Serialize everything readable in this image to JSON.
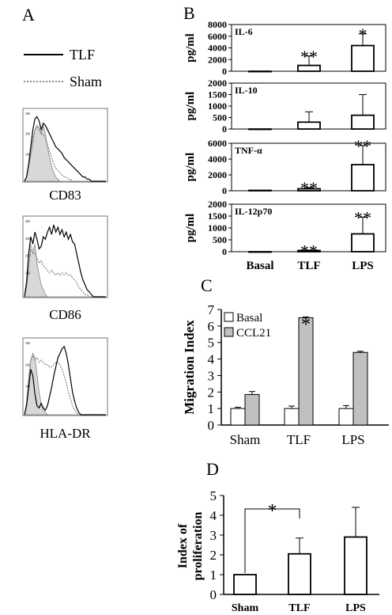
{
  "panel_labels": {
    "a": "A",
    "b": "B",
    "c": "C",
    "d": "D"
  },
  "panel_a": {
    "legend": [
      {
        "label": "TLF",
        "style": "solid",
        "color": "#000000"
      },
      {
        "label": "Sham",
        "style": "dotted",
        "color": "#888888"
      }
    ],
    "histograms": [
      {
        "marker": "CD83",
        "tick_labels": [
          "300",
          "200",
          "100"
        ],
        "isotype": [
          0,
          2,
          7,
          12,
          18,
          24,
          26,
          25,
          22,
          26,
          22,
          16,
          11,
          7,
          4,
          2,
          1,
          0,
          0,
          0,
          0,
          0,
          0,
          0,
          0,
          0,
          0,
          0,
          0,
          0,
          0,
          0,
          0,
          0,
          0,
          0,
          0,
          0,
          0,
          0
        ],
        "tlf": [
          0,
          2,
          8,
          16,
          24,
          29,
          30,
          28,
          24,
          27,
          26,
          24,
          22,
          20,
          18,
          16,
          15,
          14,
          13,
          11,
          10,
          9,
          8,
          7,
          6,
          5,
          4,
          3,
          2,
          2,
          1,
          1,
          0,
          0,
          0,
          0,
          0,
          0,
          0,
          0
        ],
        "sham": [
          0,
          2,
          7,
          14,
          20,
          24,
          25,
          24,
          22,
          22,
          20,
          17,
          14,
          11,
          8,
          6,
          5,
          4,
          3,
          2,
          2,
          1,
          1,
          0,
          0,
          0,
          0,
          0,
          0,
          0,
          0,
          0,
          0,
          0,
          0,
          0,
          0,
          0,
          0,
          0
        ]
      },
      {
        "marker": "CD86",
        "tick_labels": [
          "400",
          "300",
          "200",
          "100"
        ],
        "isotype": [
          0,
          4,
          12,
          20,
          18,
          22,
          14,
          9,
          5,
          3,
          1,
          0,
          0,
          0,
          0,
          0,
          0,
          0,
          0,
          0,
          0,
          0,
          0,
          0,
          0,
          0,
          0,
          0,
          0,
          0,
          0,
          0,
          0,
          0,
          0,
          0,
          0,
          0,
          0,
          0
        ],
        "tlf": [
          0,
          6,
          18,
          25,
          22,
          27,
          24,
          20,
          21,
          25,
          24,
          27,
          29,
          26,
          30,
          27,
          29,
          26,
          28,
          25,
          27,
          24,
          26,
          23,
          22,
          18,
          14,
          10,
          7,
          5,
          3,
          2,
          1,
          0,
          0,
          0,
          0,
          0,
          0,
          0
        ],
        "sham": [
          0,
          6,
          17,
          22,
          19,
          18,
          16,
          14,
          15,
          13,
          12,
          11,
          10,
          11,
          10,
          9,
          10,
          9,
          10,
          9,
          10,
          9,
          9,
          8,
          7,
          6,
          4,
          3,
          2,
          1,
          1,
          0,
          0,
          0,
          0,
          0,
          0,
          0,
          0,
          0
        ]
      },
      {
        "marker": "HLA-DR",
        "tick_labels": [
          "300",
          "200",
          "100"
        ],
        "isotype": [
          0,
          5,
          15,
          24,
          27,
          25,
          18,
          10,
          5,
          2,
          1,
          0,
          0,
          0,
          0,
          0,
          0,
          0,
          0,
          0,
          0,
          0,
          0,
          0,
          0,
          0,
          0,
          0,
          0,
          0,
          0,
          0,
          0,
          0,
          0,
          0,
          0,
          0,
          0,
          0
        ],
        "tlf": [
          0,
          4,
          12,
          20,
          17,
          9,
          4,
          3,
          5,
          3,
          2,
          4,
          8,
          12,
          17,
          21,
          25,
          27,
          29,
          30,
          27,
          22,
          16,
          10,
          6,
          3,
          1,
          0,
          0,
          0,
          0,
          0,
          0,
          0,
          0,
          0,
          0,
          0,
          0,
          0
        ],
        "sham": [
          0,
          5,
          16,
          24,
          26,
          24,
          25,
          23,
          24,
          23,
          22,
          22,
          21,
          21,
          22,
          23,
          23,
          22,
          20,
          17,
          14,
          10,
          7,
          4,
          2,
          1,
          0,
          0,
          0,
          0,
          0,
          0,
          0,
          0,
          0,
          0,
          0,
          0,
          0,
          0
        ]
      }
    ]
  },
  "chart_data": [
    {
      "type": "bar",
      "panel": "B",
      "label": "IL-6",
      "ylabel": "pg/ml",
      "categories": [
        "Basal",
        "TLF",
        "LPS"
      ],
      "values": [
        0,
        1000,
        4400
      ],
      "errors": [
        0,
        1600,
        2000
      ],
      "annotations": [
        "",
        "**",
        "*"
      ],
      "ylim": [
        0,
        8000
      ],
      "yticks": [
        0,
        2000,
        4000,
        6000,
        8000
      ]
    },
    {
      "type": "bar",
      "panel": "B",
      "label": "IL-10",
      "ylabel": "pg/ml",
      "categories": [
        "Basal",
        "TLF",
        "LPS"
      ],
      "values": [
        0,
        300,
        600
      ],
      "errors": [
        0,
        450,
        900
      ],
      "annotations": [
        "",
        "",
        ""
      ],
      "ylim": [
        0,
        2000
      ],
      "yticks": [
        0,
        500,
        1000,
        1500,
        2000
      ]
    },
    {
      "type": "bar",
      "panel": "B",
      "label": "TNF-α",
      "ylabel": "pg/ml",
      "categories": [
        "Basal",
        "TLF",
        "LPS"
      ],
      "values": [
        50,
        250,
        3300
      ],
      "errors": [
        0,
        150,
        2400
      ],
      "annotations": [
        "",
        "**",
        "**"
      ],
      "ylim": [
        0,
        6000
      ],
      "yticks": [
        0,
        2000,
        4000,
        6000
      ]
    },
    {
      "type": "bar",
      "panel": "B",
      "label": "IL-12p70",
      "ylabel": "pg/ml",
      "categories": [
        "Basal",
        "TLF",
        "LPS"
      ],
      "values": [
        0,
        50,
        750
      ],
      "errors": [
        0,
        0,
        700
      ],
      "annotations": [
        "",
        "**",
        "**"
      ],
      "ylim": [
        0,
        2000
      ],
      "yticks": [
        0,
        500,
        1000,
        1500,
        2000
      ],
      "xtick_labels": [
        "Basal",
        "TLF",
        "LPS"
      ]
    },
    {
      "type": "bar",
      "panel": "C",
      "ylabel": "Migration Index",
      "categories": [
        "Sham",
        "TLF",
        "LPS"
      ],
      "series": [
        {
          "name": "Basal",
          "color": "#ffffff",
          "values": [
            1.0,
            1.0,
            1.0
          ],
          "errors": [
            0.08,
            0.15,
            0.18
          ]
        },
        {
          "name": "CCL21",
          "color": "#c0c0c0",
          "values": [
            1.85,
            6.5,
            4.4
          ],
          "errors": [
            0.18,
            0.05,
            0.07
          ]
        }
      ],
      "annotations": [
        {
          "category": "TLF",
          "text": "*"
        }
      ],
      "ylim": [
        0,
        7
      ],
      "yticks": [
        0,
        1,
        2,
        3,
        4,
        5,
        6,
        7
      ]
    },
    {
      "type": "bar",
      "panel": "D",
      "ylabel": [
        "Index of",
        "proliferation"
      ],
      "categories": [
        "Sham",
        "TLF",
        "LPS"
      ],
      "values": [
        1.0,
        2.05,
        2.9
      ],
      "errors": [
        0,
        0.8,
        1.5
      ],
      "significance": {
        "from": "Sham",
        "to": "TLF",
        "text": "*"
      },
      "ylim": [
        0,
        5
      ],
      "yticks": [
        0,
        1,
        2,
        3,
        4,
        5
      ]
    }
  ]
}
